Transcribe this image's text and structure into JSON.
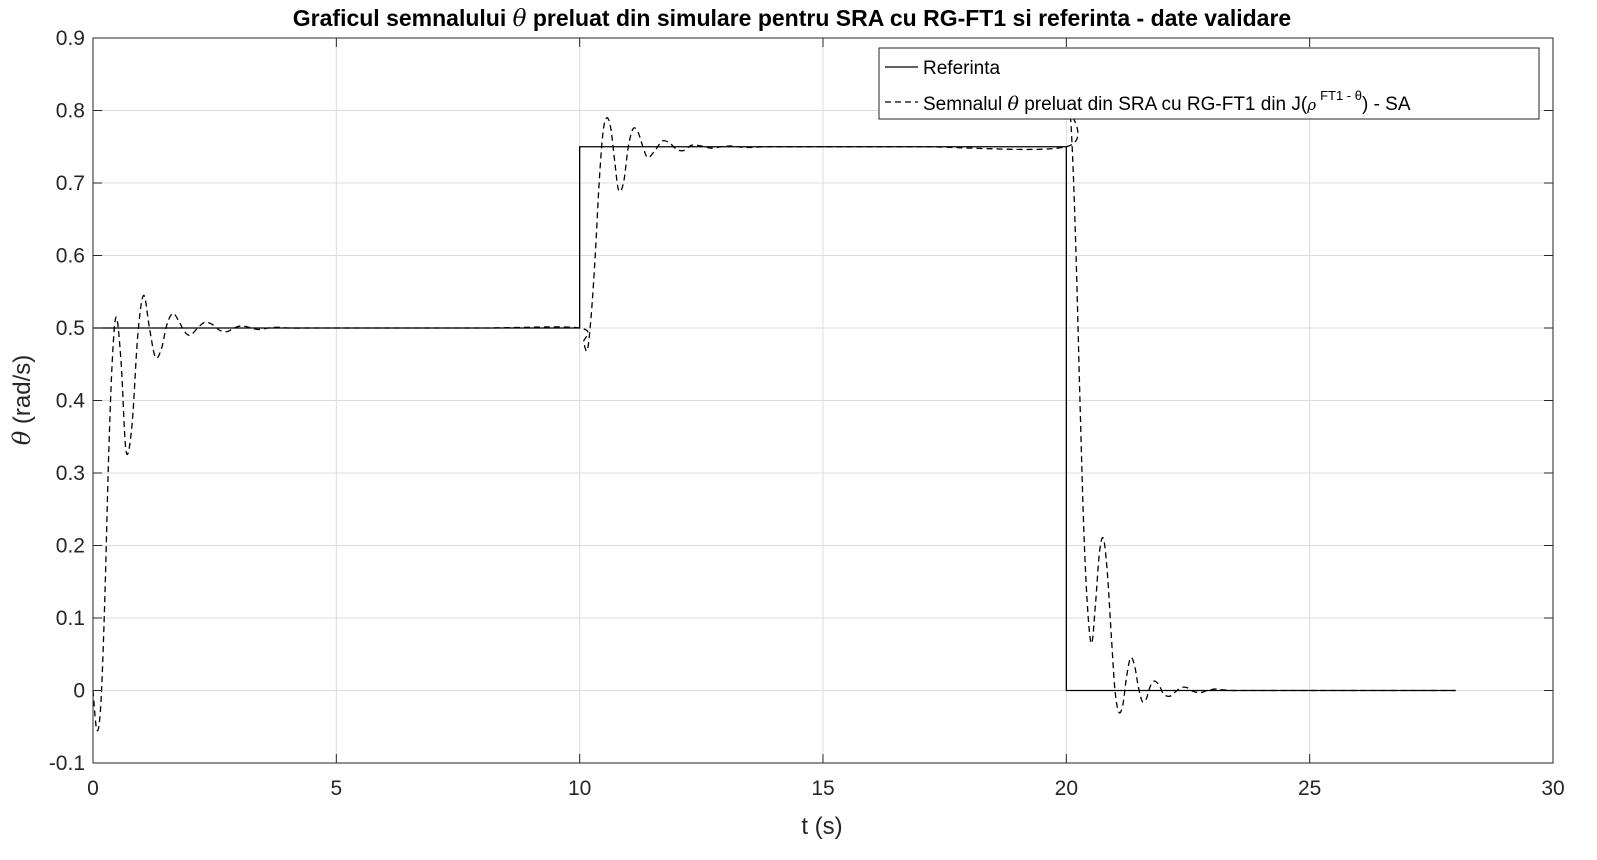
{
  "chart_data": {
    "type": "line",
    "title": {
      "before": "Graficul semnalului ",
      "symbol": "θ",
      "after": " preluat din simulare pentru SRA cu RG-FT1 si referinta - date validare"
    },
    "xlabel": "t (s)",
    "ylabel": {
      "symbol": "θ",
      "text": " (rad/s)"
    },
    "xlim": [
      0,
      30
    ],
    "ylim": [
      -0.1,
      0.9
    ],
    "xticks": [
      0,
      5,
      10,
      15,
      20,
      25,
      30
    ],
    "xtick_labels": [
      "0",
      "5",
      "10",
      "15",
      "20",
      "25",
      "30"
    ],
    "yticks": [
      -0.1,
      0,
      0.1,
      0.2,
      0.3,
      0.4,
      0.5,
      0.6,
      0.7,
      0.8,
      0.9
    ],
    "ytick_labels": [
      "-0.1",
      "0",
      "0.1",
      "0.2",
      "0.3",
      "0.4",
      "0.5",
      "0.6",
      "0.7",
      "0.8",
      "0.9"
    ],
    "grid": true,
    "legend_position": "top-right",
    "series": [
      {
        "name": "Referinta",
        "style": "solid",
        "color": "#000000",
        "x": [
          0,
          10,
          10,
          20,
          20,
          28
        ],
        "y": [
          0.5,
          0.5,
          0.75,
          0.75,
          0,
          0
        ]
      },
      {
        "name": {
          "before": "Semnalul ",
          "symbol": "θ",
          "middle": " preluat din SRA cu RG-FT1 din J(",
          "rho": "ρ",
          "sup": "FT1 - θ",
          "after": ") - SA"
        },
        "style": "dashed",
        "color": "#000000",
        "x": [
          0,
          0.08,
          0.16,
          0.24,
          0.32,
          0.4,
          0.48,
          0.58,
          0.68,
          0.8,
          0.92,
          1.04,
          1.16,
          1.28,
          1.4,
          1.52,
          1.64,
          1.76,
          1.88,
          2.0,
          2.15,
          2.3,
          2.45,
          2.6,
          2.75,
          2.9,
          3.05,
          3.2,
          3.4,
          3.6,
          3.8,
          4.0,
          4.5,
          5.0,
          6.0,
          8.0,
          10.0,
          10.08,
          10.16,
          10.24,
          10.32,
          10.4,
          10.48,
          10.56,
          10.64,
          10.72,
          10.8,
          10.9,
          11.0,
          11.1,
          11.2,
          11.3,
          11.4,
          11.55,
          11.7,
          11.85,
          12.0,
          12.15,
          12.3,
          12.5,
          12.7,
          12.9,
          13.1,
          13.4,
          13.8,
          14.3,
          15.0,
          17.0,
          20.0,
          20.06,
          20.12,
          20.2,
          20.28,
          20.36,
          20.44,
          20.52,
          20.6,
          20.68,
          20.76,
          20.84,
          20.92,
          21.0,
          21.08,
          21.16,
          21.24,
          21.32,
          21.4,
          21.48,
          21.56,
          21.64,
          21.72,
          21.8,
          21.9,
          22.0,
          22.12,
          22.24,
          22.36,
          22.48,
          22.6,
          22.75,
          22.9,
          23.05,
          23.2,
          23.4,
          23.6,
          23.8,
          24.0,
          24.5,
          25.0,
          26.0,
          28.0
        ],
        "y": [
          0,
          -0.055,
          -0.02,
          0.12,
          0.32,
          0.46,
          0.515,
          0.45,
          0.33,
          0.365,
          0.49,
          0.545,
          0.5,
          0.46,
          0.47,
          0.505,
          0.52,
          0.51,
          0.495,
          0.49,
          0.5,
          0.508,
          0.505,
          0.497,
          0.495,
          0.5,
          0.503,
          0.501,
          0.498,
          0.5,
          0.501,
          0.5,
          0.5,
          0.5,
          0.5,
          0.5,
          0.5,
          0.48,
          0.47,
          0.52,
          0.6,
          0.7,
          0.77,
          0.79,
          0.775,
          0.73,
          0.69,
          0.7,
          0.75,
          0.775,
          0.77,
          0.75,
          0.735,
          0.745,
          0.758,
          0.755,
          0.746,
          0.745,
          0.752,
          0.751,
          0.748,
          0.75,
          0.751,
          0.749,
          0.75,
          0.75,
          0.75,
          0.75,
          0.75,
          0.8,
          0.75,
          0.6,
          0.4,
          0.22,
          0.11,
          0.065,
          0.12,
          0.19,
          0.21,
          0.165,
          0.08,
          0.0,
          -0.03,
          -0.02,
          0.02,
          0.045,
          0.035,
          0.005,
          -0.015,
          -0.012,
          0.005,
          0.013,
          0.008,
          -0.005,
          -0.008,
          -0.002,
          0.004,
          0.004,
          -0.001,
          -0.003,
          0.0,
          0.002,
          0.001,
          0.0,
          0.0,
          0.0,
          0.0,
          0.0,
          0.0,
          0.0,
          0.0
        ]
      }
    ]
  }
}
